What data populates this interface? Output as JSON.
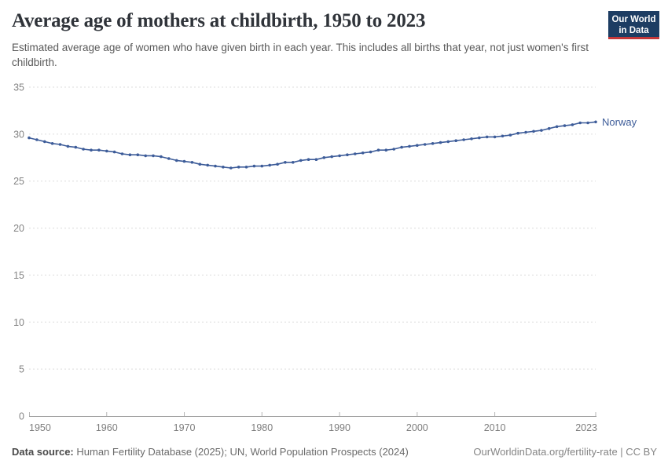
{
  "header": {
    "title": "Average age of mothers at childbirth, 1950 to 2023",
    "subtitle": "Estimated average age of women who have given birth in each year. This includes all births that year, not just women's first childbirth.",
    "logo": {
      "line1": "Our World",
      "line2": "in Data",
      "bg_color": "#1d3d63",
      "accent_color": "#c5383a"
    }
  },
  "chart_data": {
    "type": "line",
    "title": "Average age of mothers at childbirth, 1950 to 2023",
    "xlabel": "",
    "ylabel": "",
    "ylim": [
      0,
      35
    ],
    "yticks": [
      0,
      5,
      10,
      15,
      20,
      25,
      30,
      35
    ],
    "xticks": [
      1950,
      1960,
      1970,
      1980,
      1990,
      2000,
      2010,
      2023
    ],
    "grid": "horizontal-dashed",
    "legend_position": "end-of-line-label",
    "marker": "circle",
    "x": [
      1950,
      1951,
      1952,
      1953,
      1954,
      1955,
      1956,
      1957,
      1958,
      1959,
      1960,
      1961,
      1962,
      1963,
      1964,
      1965,
      1966,
      1967,
      1968,
      1969,
      1970,
      1971,
      1972,
      1973,
      1974,
      1975,
      1976,
      1977,
      1978,
      1979,
      1980,
      1981,
      1982,
      1983,
      1984,
      1985,
      1986,
      1987,
      1988,
      1989,
      1990,
      1991,
      1992,
      1993,
      1994,
      1995,
      1996,
      1997,
      1998,
      1999,
      2000,
      2001,
      2002,
      2003,
      2004,
      2005,
      2006,
      2007,
      2008,
      2009,
      2010,
      2011,
      2012,
      2013,
      2014,
      2015,
      2016,
      2017,
      2018,
      2019,
      2020,
      2021,
      2022,
      2023
    ],
    "series": [
      {
        "name": "Norway",
        "color": "#3d5c99",
        "values": [
          29.6,
          29.4,
          29.2,
          29.0,
          28.9,
          28.7,
          28.6,
          28.4,
          28.3,
          28.3,
          28.2,
          28.1,
          27.9,
          27.8,
          27.8,
          27.7,
          27.7,
          27.6,
          27.4,
          27.2,
          27.1,
          27.0,
          26.8,
          26.7,
          26.6,
          26.5,
          26.4,
          26.5,
          26.5,
          26.6,
          26.6,
          26.7,
          26.8,
          27.0,
          27.0,
          27.2,
          27.3,
          27.3,
          27.5,
          27.6,
          27.7,
          27.8,
          27.9,
          28.0,
          28.1,
          28.3,
          28.3,
          28.4,
          28.6,
          28.7,
          28.8,
          28.9,
          29.0,
          29.1,
          29.2,
          29.3,
          29.4,
          29.5,
          29.6,
          29.7,
          29.7,
          29.8,
          29.9,
          30.1,
          30.2,
          30.3,
          30.4,
          30.6,
          30.8,
          30.9,
          31.0,
          31.2,
          31.2,
          31.3
        ]
      }
    ]
  },
  "axis_colors": {
    "gridline": "#dcdcdc",
    "axis_line": "#9e9e9e",
    "tick_mark": "#b5b5b5",
    "y_label": "#848484",
    "x_label": "#7d7d7d"
  },
  "footer": {
    "source_label": "Data source:",
    "source_text": "Human Fertility Database (2025); UN, World Population Prospects (2024)",
    "credit": "OurWorldinData.org/fertility-rate | CC BY"
  }
}
